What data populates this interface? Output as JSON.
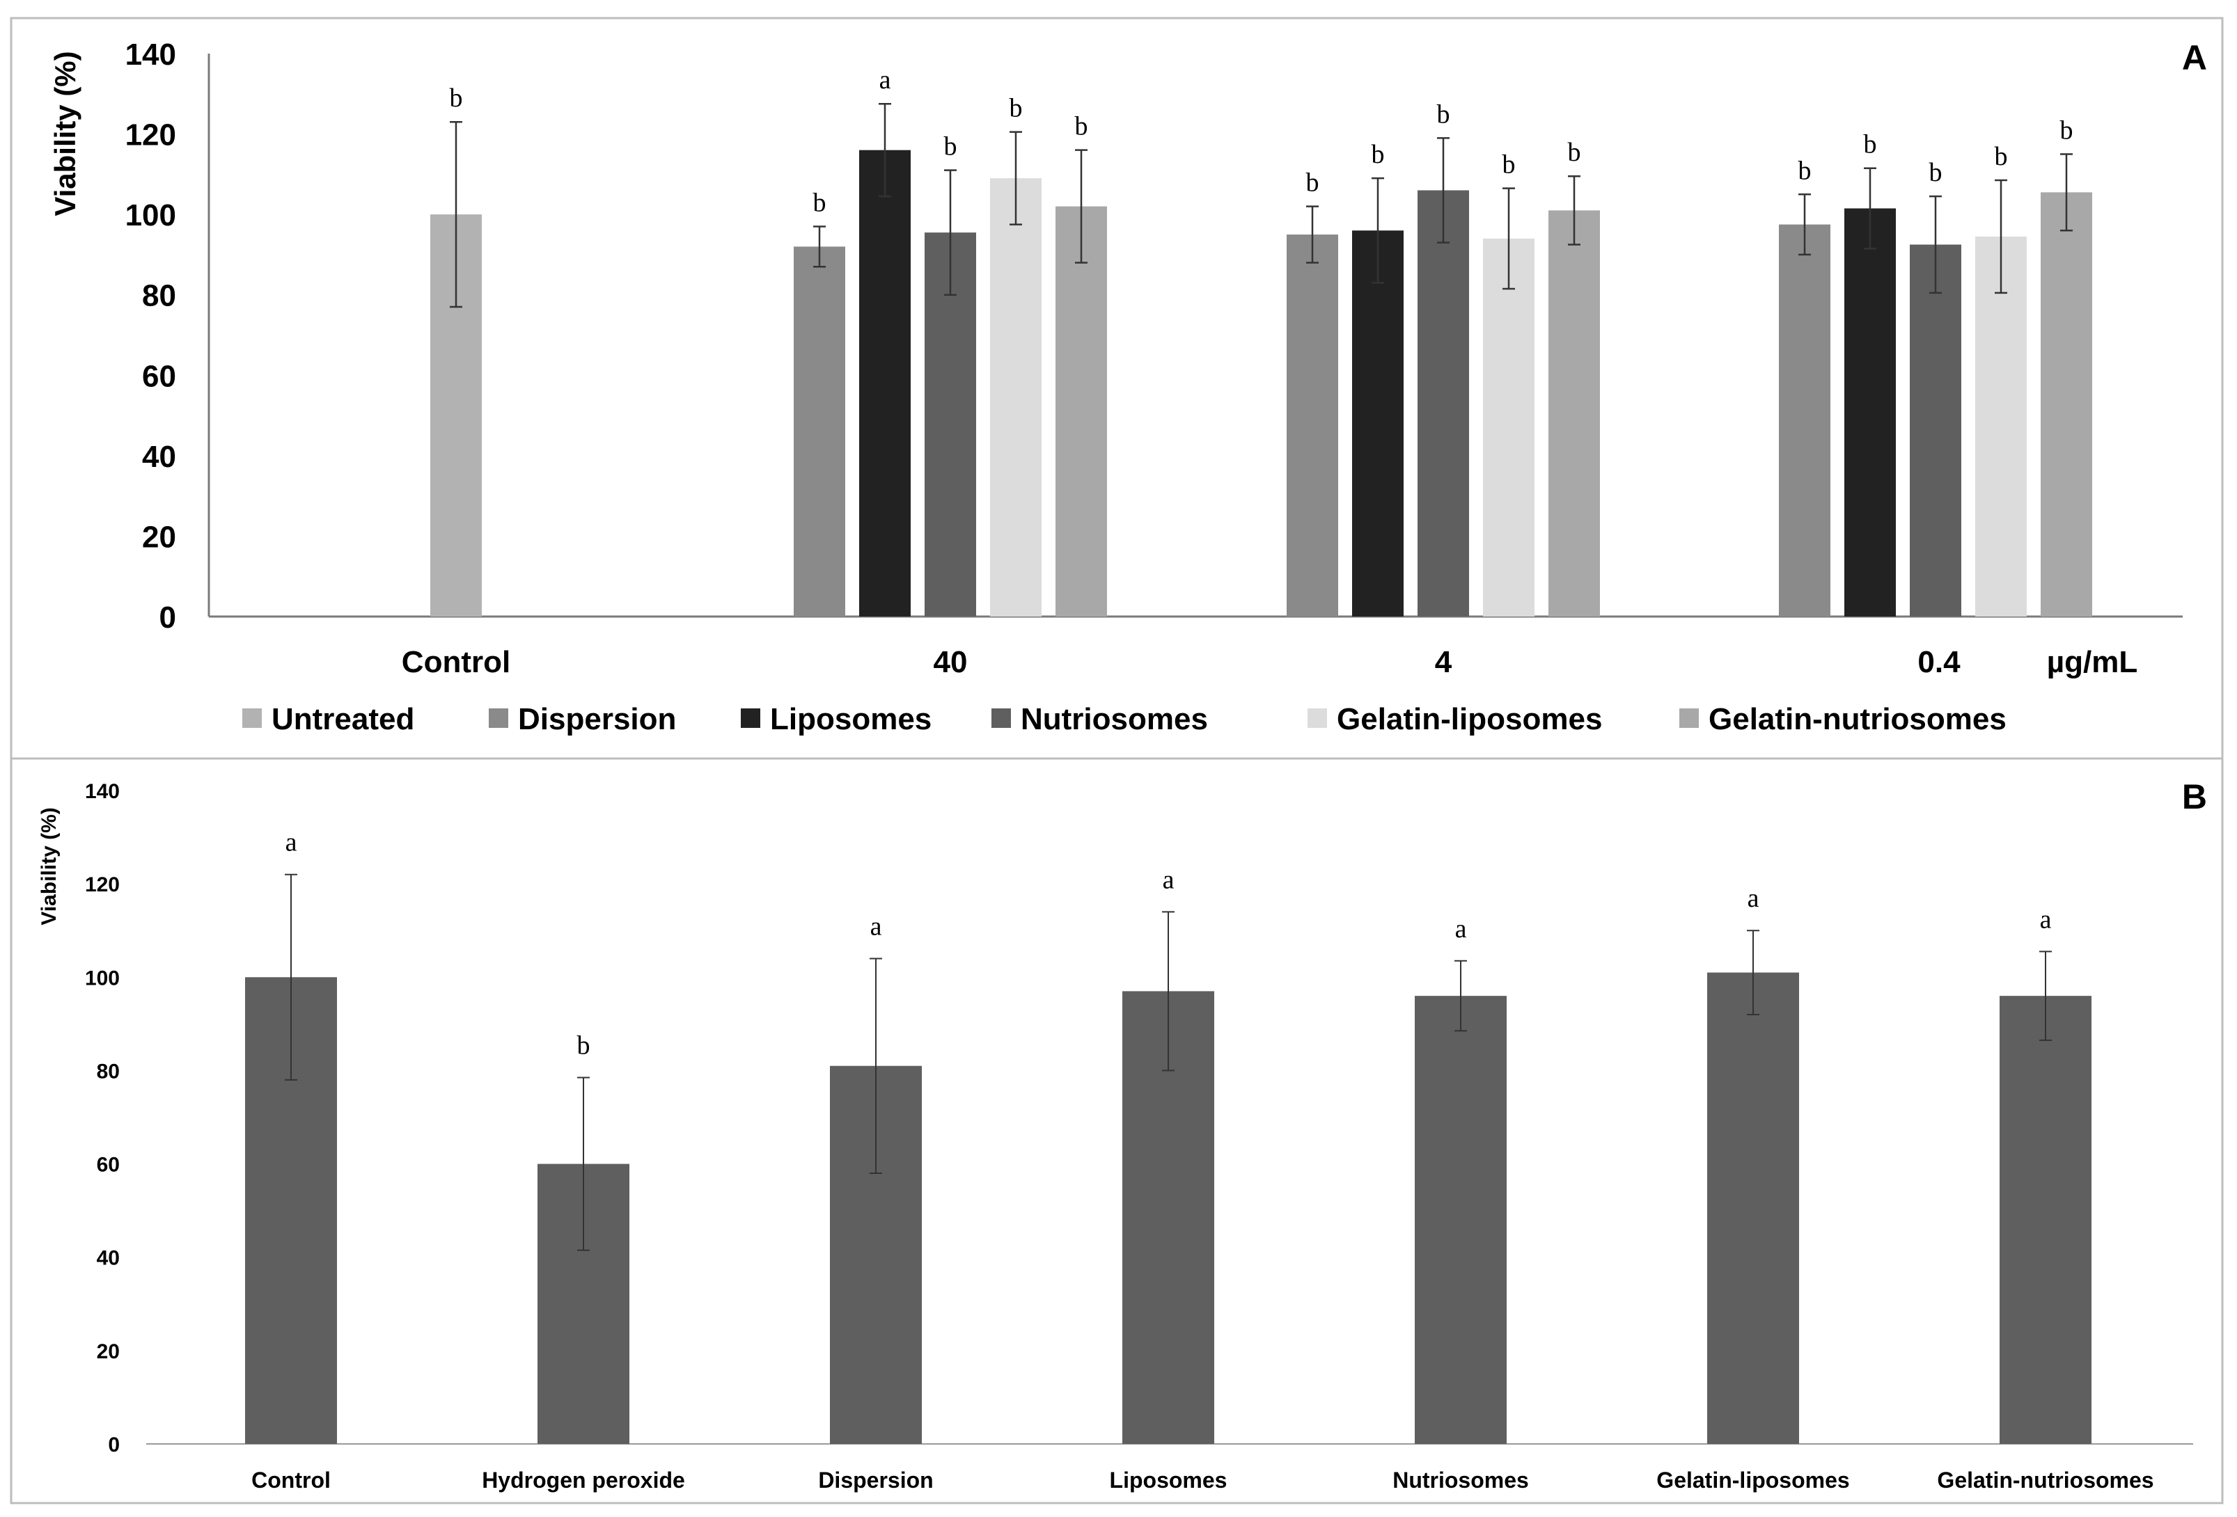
{
  "chart_data": [
    {
      "panel": "A",
      "type": "bar",
      "ylabel": "Viability (%)",
      "unit_label": "µg/mL",
      "ylim": [
        0,
        140
      ],
      "yticks": [
        "0",
        "20",
        "40",
        "60",
        "80",
        "100",
        "120",
        "140"
      ],
      "categories": [
        "Control",
        "40",
        "4",
        "0.4"
      ],
      "series": [
        {
          "name": "Untreated",
          "color": "#b2b2b2",
          "values": [
            100,
            null,
            null,
            null
          ],
          "errors": [
            23,
            null,
            null,
            null
          ],
          "letters": [
            "b",
            null,
            null,
            null
          ]
        },
        {
          "name": "Dispersion",
          "color": "#8a8a8a",
          "values": [
            null,
            92,
            95,
            97.5
          ],
          "errors": [
            null,
            5,
            7,
            7.5
          ],
          "letters": [
            null,
            "b",
            "b",
            "b"
          ]
        },
        {
          "name": "Liposomes",
          "color": "#222222",
          "values": [
            null,
            116,
            96,
            101.5
          ],
          "errors": [
            null,
            11.5,
            13,
            10
          ],
          "letters": [
            null,
            "a",
            "b",
            "b"
          ]
        },
        {
          "name": "Nutriosomes",
          "color": "#5f5f5f",
          "values": [
            null,
            95.5,
            106,
            92.5
          ],
          "errors": [
            null,
            15.5,
            13,
            12
          ],
          "letters": [
            null,
            "b",
            "b",
            "b"
          ]
        },
        {
          "name": "Gelatin-liposomes",
          "color": "#dcdcdc",
          "values": [
            null,
            109,
            94,
            94.5
          ],
          "errors": [
            null,
            11.5,
            12.5,
            14
          ],
          "letters": [
            null,
            "b",
            "b",
            "b"
          ]
        },
        {
          "name": "Gelatin-nutriosomes",
          "color": "#a8a8a8",
          "values": [
            null,
            102,
            101,
            105.5
          ],
          "errors": [
            null,
            14,
            8.5,
            9.5
          ],
          "letters": [
            null,
            "b",
            "b",
            "b"
          ]
        }
      ]
    },
    {
      "panel": "B",
      "type": "bar",
      "ylabel": "Viability (%)",
      "ylim": [
        0,
        140
      ],
      "yticks": [
        "0",
        "20",
        "40",
        "60",
        "80",
        "100",
        "120",
        "140"
      ],
      "color": "#5f5f5f",
      "categories": [
        "Control",
        "Hydrogen peroxide",
        "Dispersion",
        "Liposomes",
        "Nutriosomes",
        "Gelatin-liposomes",
        "Gelatin-nutriosomes"
      ],
      "values": [
        100,
        60,
        81,
        97,
        96,
        101,
        96
      ],
      "errors": [
        22,
        18.5,
        23,
        17,
        7.5,
        9,
        9.5
      ],
      "letters": [
        "a",
        "b",
        "a",
        "a",
        "a",
        "a",
        "a"
      ]
    }
  ]
}
